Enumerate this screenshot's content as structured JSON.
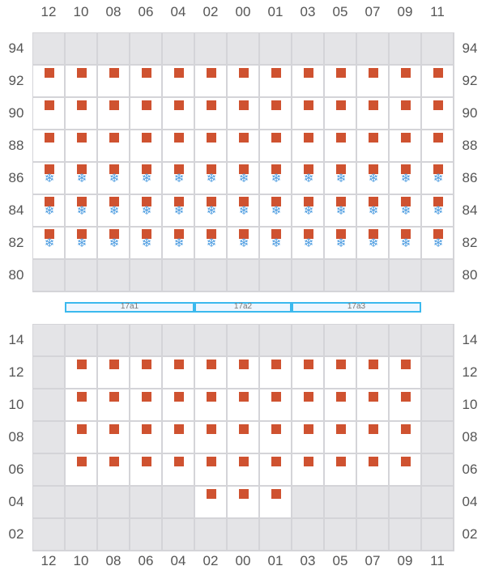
{
  "columns": [
    "12",
    "10",
    "08",
    "06",
    "04",
    "02",
    "00",
    "01",
    "03",
    "05",
    "07",
    "09",
    "11"
  ],
  "colors": {
    "box": "#cf5230",
    "snow": "#4a9be0",
    "empty": "#e4e4e7",
    "occupied": "#ffffff",
    "segment": "#3bb9ee"
  },
  "legend_codes": {
    "b": "box",
    "bs": "box+snowflake-icon",
    "w": "occupied-empty",
    "": "empty"
  },
  "top_grid": {
    "rows": [
      {
        "label": "94",
        "cells": [
          "",
          "",
          "",
          "",
          "",
          "",
          "",
          "",
          "",
          "",
          "",
          "",
          ""
        ]
      },
      {
        "label": "92",
        "cells": [
          "b",
          "b",
          "b",
          "b",
          "b",
          "b",
          "b",
          "b",
          "b",
          "b",
          "b",
          "b",
          "b"
        ]
      },
      {
        "label": "90",
        "cells": [
          "b",
          "b",
          "b",
          "b",
          "b",
          "b",
          "b",
          "b",
          "b",
          "b",
          "b",
          "b",
          "b"
        ]
      },
      {
        "label": "88",
        "cells": [
          "b",
          "b",
          "b",
          "b",
          "b",
          "b",
          "b",
          "b",
          "b",
          "b",
          "b",
          "b",
          "b"
        ]
      },
      {
        "label": "86",
        "cells": [
          "bs",
          "bs",
          "bs",
          "bs",
          "bs",
          "bs",
          "bs",
          "bs",
          "bs",
          "bs",
          "bs",
          "bs",
          "bs"
        ]
      },
      {
        "label": "84",
        "cells": [
          "bs",
          "bs",
          "bs",
          "bs",
          "bs",
          "bs",
          "bs",
          "bs",
          "bs",
          "bs",
          "bs",
          "bs",
          "bs"
        ]
      },
      {
        "label": "82",
        "cells": [
          "bs",
          "bs",
          "bs",
          "bs",
          "bs",
          "bs",
          "bs",
          "bs",
          "bs",
          "bs",
          "bs",
          "bs",
          "bs"
        ]
      },
      {
        "label": "80",
        "cells": [
          "",
          "",
          "",
          "",
          "",
          "",
          "",
          "",
          "",
          "",
          "",
          "",
          ""
        ]
      }
    ]
  },
  "segments": [
    {
      "label": "17a1",
      "span": 4
    },
    {
      "label": "17a2",
      "span": 3
    },
    {
      "label": "17a3",
      "span": 4
    }
  ],
  "bottom_grid": {
    "rows": [
      {
        "label": "14",
        "cells": [
          "",
          "",
          "",
          "",
          "",
          "",
          "",
          "",
          "",
          "",
          "",
          "",
          ""
        ]
      },
      {
        "label": "12",
        "cells": [
          "",
          "b",
          "b",
          "b",
          "b",
          "b",
          "b",
          "b",
          "b",
          "b",
          "b",
          "b",
          ""
        ]
      },
      {
        "label": "10",
        "cells": [
          "",
          "b",
          "b",
          "b",
          "b",
          "b",
          "b",
          "b",
          "b",
          "b",
          "b",
          "b",
          ""
        ]
      },
      {
        "label": "08",
        "cells": [
          "",
          "b",
          "b",
          "b",
          "b",
          "b",
          "b",
          "b",
          "b",
          "b",
          "b",
          "b",
          ""
        ]
      },
      {
        "label": "06",
        "cells": [
          "",
          "b",
          "b",
          "b",
          "b",
          "b",
          "b",
          "b",
          "b",
          "b",
          "b",
          "b",
          ""
        ]
      },
      {
        "label": "04",
        "cells": [
          "",
          "",
          "",
          "",
          "",
          "b",
          "b",
          "b",
          "",
          "",
          "",
          "",
          ""
        ]
      },
      {
        "label": "02",
        "cells": [
          "",
          "",
          "",
          "",
          "",
          "",
          "",
          "",
          "",
          "",
          "",
          "",
          ""
        ]
      }
    ]
  }
}
